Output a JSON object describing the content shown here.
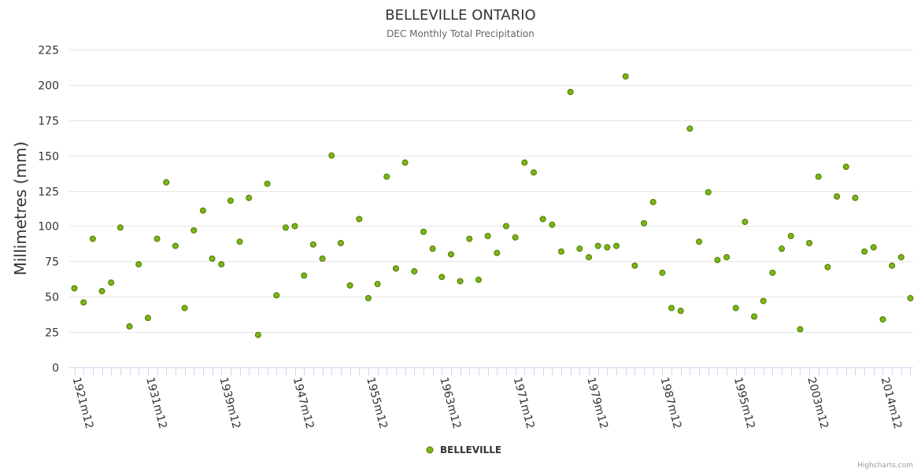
{
  "chart_data": {
    "type": "scatter",
    "title": "BELLEVILLE ONTARIO",
    "subtitle": "DEC Monthly Total Precipitation",
    "ylabel": "Millimetres (mm)",
    "xlabel": "",
    "ylim": [
      0,
      225
    ],
    "yticks": [
      0,
      25,
      50,
      75,
      100,
      125,
      150,
      175,
      200,
      225
    ],
    "x_tick_labels": [
      {
        "index": 0,
        "label": "1921m12"
      },
      {
        "index": 8,
        "label": "1931m12"
      },
      {
        "index": 16,
        "label": "1939m12"
      },
      {
        "index": 24,
        "label": "1947m12"
      },
      {
        "index": 32,
        "label": "1955m12"
      },
      {
        "index": 40,
        "label": "1963m12"
      },
      {
        "index": 48,
        "label": "1971m12"
      },
      {
        "index": 56,
        "label": "1979m12"
      },
      {
        "index": 64,
        "label": "1987m12"
      },
      {
        "index": 72,
        "label": "1995m12"
      },
      {
        "index": 80,
        "label": "2003m12"
      },
      {
        "index": 88,
        "label": "2014m12"
      }
    ],
    "grid": true,
    "legend_position": "bottom-center",
    "series": [
      {
        "name": "BELLEVILLE",
        "color": "#7cb518",
        "values": [
          56,
          46,
          91,
          54,
          60,
          99,
          29,
          73,
          35,
          91,
          131,
          86,
          42,
          97,
          111,
          77,
          73,
          118,
          89,
          120,
          23,
          130,
          51,
          99,
          100,
          65,
          87,
          77,
          150,
          88,
          58,
          105,
          49,
          59,
          135,
          70,
          145,
          68,
          96,
          84,
          64,
          80,
          61,
          91,
          62,
          93,
          81,
          100,
          92,
          145,
          138,
          105,
          101,
          82,
          195,
          84,
          78,
          86,
          85,
          86,
          206,
          72,
          102,
          117,
          67,
          42,
          40,
          169,
          89,
          124,
          76,
          78,
          42,
          103,
          36,
          47,
          67,
          84,
          93,
          27,
          88,
          135,
          71,
          121,
          142,
          120,
          82,
          85,
          34,
          72,
          78,
          49
        ]
      }
    ]
  },
  "credits": "Highcharts.com"
}
